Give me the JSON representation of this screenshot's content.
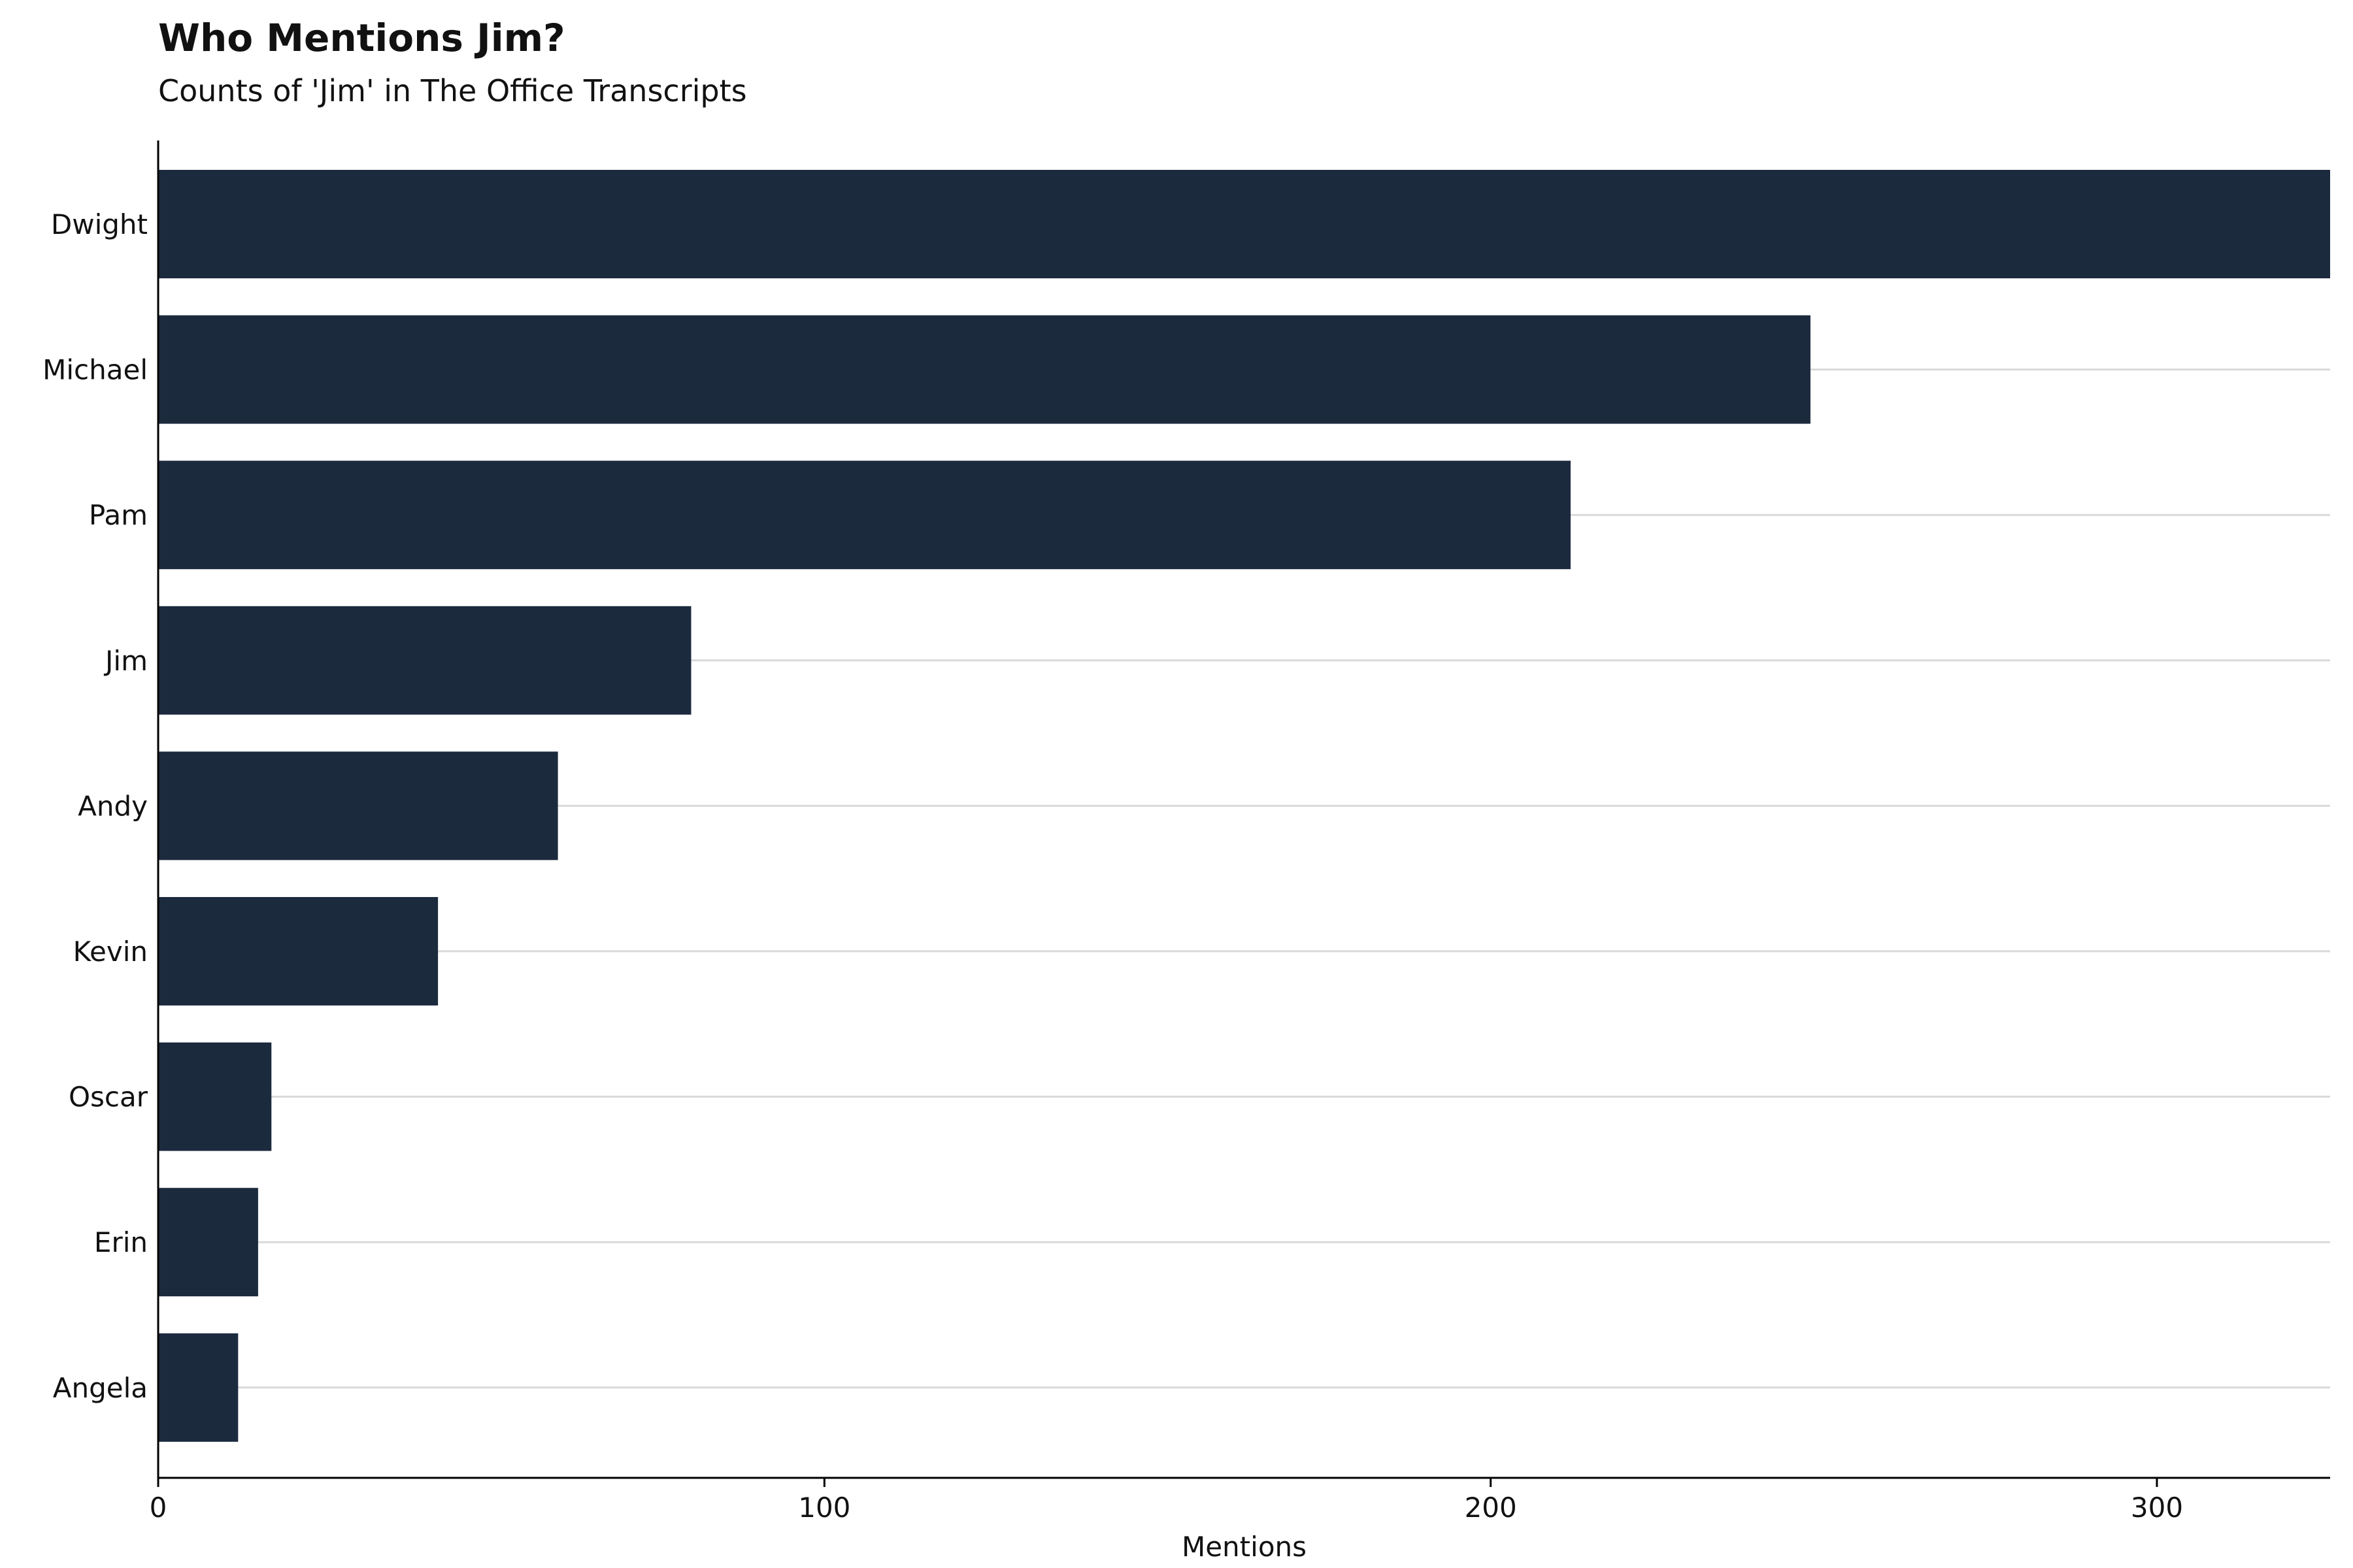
{
  "chart_data": {
    "type": "bar",
    "orientation": "horizontal",
    "title": "Who Mentions Jim?",
    "subtitle": "Counts of 'Jim' in The Office Transcripts",
    "xlabel": "Mentions",
    "ylabel": "",
    "categories": [
      "Dwight",
      "Michael",
      "Pam",
      "Jim",
      "Andy",
      "Kevin",
      "Oscar",
      "Erin",
      "Angela"
    ],
    "values": [
      326,
      248,
      212,
      80,
      60,
      42,
      17,
      15,
      12
    ],
    "xlim": [
      0,
      326
    ],
    "xticks": [
      0,
      100,
      200,
      300
    ],
    "grid": "horizontal lines at category positions",
    "legend": "none",
    "bar_color": "#1c2a3e",
    "grid_color": "#d9d9d9",
    "axis_color": "#000000"
  }
}
